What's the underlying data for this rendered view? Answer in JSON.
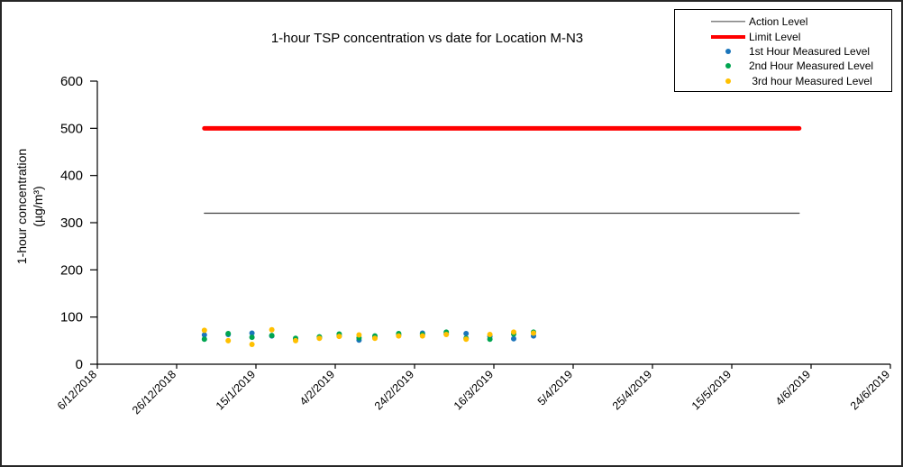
{
  "window": {
    "background": "#ffffff",
    "border_color": "#262626"
  },
  "chart_data": {
    "type": "scatter",
    "title": "1-hour TSP concentration vs date for Location M-N3",
    "y_axis": {
      "title_line1": "1-hour concentration",
      "title_line2": "(µg/m³)",
      "min": 0,
      "max": 600,
      "ticks": [
        0,
        100,
        200,
        300,
        400,
        500,
        600
      ]
    },
    "x_axis": {
      "ticks": [
        "6/12/2018",
        "26/12/2018",
        "15/1/2019",
        "4/2/2019",
        "24/2/2019",
        "16/3/2019",
        "5/4/2019",
        "25/4/2019",
        "15/5/2019",
        "4/6/2019",
        "24/6/2019"
      ]
    },
    "reference_lines": [
      {
        "name": "Action Level",
        "value": 320,
        "color": "#404040",
        "width": 1.3,
        "start": "2/1/2019",
        "end": "1/6/2019"
      },
      {
        "name": "Limit Level",
        "value": 500,
        "color": "#ff0000",
        "width": 5,
        "start": "2/1/2019",
        "end": "1/6/2019"
      }
    ],
    "points": {
      "dates": [
        "2/1/2019",
        "8/1/2019",
        "14/1/2019",
        "19/1/2019",
        "25/1/2019",
        "31/1/2019",
        "5/2/2019",
        "10/2/2019",
        "14/2/2019",
        "20/2/2019",
        "26/2/2019",
        "4/3/2019",
        "9/3/2019",
        "15/3/2019",
        "21/3/2019",
        "26/3/2019"
      ],
      "series": [
        {
          "name": "1st Hour Measured Level",
          "color": "#1b75bb",
          "values": [
            62,
            63,
            66,
            60,
            53,
            56,
            60,
            51,
            57,
            62,
            66,
            64,
            65,
            59,
            54,
            60
          ]
        },
        {
          "name": "2nd Hour Measured Level",
          "color": "#00a550",
          "values": [
            53,
            65,
            57,
            61,
            55,
            58,
            64,
            56,
            60,
            65,
            63,
            68,
            55,
            53,
            64,
            68
          ]
        },
        {
          "name": "3rd hour Measured Level",
          "color": "#ffc000",
          "values": [
            72,
            50,
            42,
            73,
            50,
            55,
            59,
            62,
            55,
            60,
            60,
            63,
            53,
            63,
            68,
            66
          ]
        }
      ]
    },
    "legend": {
      "position": "top-right",
      "entries": [
        {
          "label": "Action Level",
          "marker": "line",
          "color": "#404040",
          "thickness": 1.3
        },
        {
          "label": "Limit Level",
          "marker": "line",
          "color": "#ff0000",
          "thickness": 4
        },
        {
          "label": "1st Hour Measured Level",
          "marker": "dot",
          "color": "#1b75bb"
        },
        {
          "label": "2nd Hour Measured Level",
          "marker": "dot",
          "color": "#00a550"
        },
        {
          "label": " 3rd hour Measured Level",
          "marker": "dot",
          "color": "#ffc000"
        }
      ]
    }
  }
}
